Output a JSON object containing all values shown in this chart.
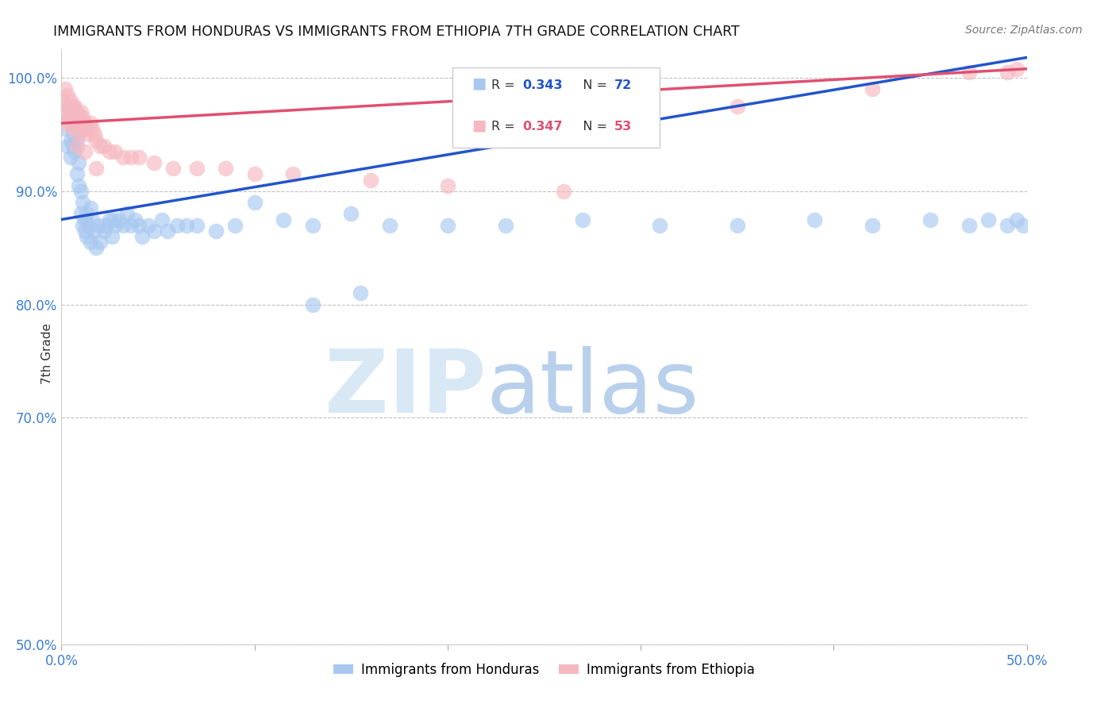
{
  "title": "IMMIGRANTS FROM HONDURAS VS IMMIGRANTS FROM ETHIOPIA 7TH GRADE CORRELATION CHART",
  "source": "Source: ZipAtlas.com",
  "ylabel": "7th Grade",
  "blue_color": "#A8C8F0",
  "pink_color": "#F5B8C0",
  "blue_line_color": "#2255CC",
  "pink_line_color": "#E05070",
  "blue_r": 0.343,
  "blue_n": 72,
  "pink_r": 0.347,
  "pink_n": 53,
  "background_color": "#FFFFFF",
  "grid_color": "#BBBBBB",
  "title_color": "#111111",
  "axis_label_color": "#3B7DD8",
  "watermark_zip_color": "#D8E8F5",
  "watermark_atlas_color": "#B8D0EC",
  "xlim": [
    0.0,
    0.5
  ],
  "ylim": [
    0.5,
    1.025
  ],
  "yticks": [
    0.5,
    0.7,
    0.8,
    0.9,
    1.0
  ],
  "ytick_labels": [
    "50.0%",
    "70.0%",
    "80.0%",
    "90.0%",
    "100.0%"
  ],
  "blue_line_x0": 0.0,
  "blue_line_y0": 0.875,
  "blue_line_x1": 0.5,
  "blue_line_y1": 1.018,
  "pink_line_x0": 0.0,
  "pink_line_y0": 0.96,
  "pink_line_x1": 0.5,
  "pink_line_y1": 1.008,
  "blue_scatter_x": [
    0.002,
    0.003,
    0.004,
    0.004,
    0.005,
    0.005,
    0.006,
    0.006,
    0.007,
    0.007,
    0.008,
    0.008,
    0.009,
    0.009,
    0.01,
    0.01,
    0.011,
    0.011,
    0.012,
    0.012,
    0.013,
    0.013,
    0.014,
    0.015,
    0.015,
    0.016,
    0.017,
    0.018,
    0.019,
    0.02,
    0.022,
    0.023,
    0.025,
    0.026,
    0.027,
    0.028,
    0.03,
    0.032,
    0.034,
    0.036,
    0.038,
    0.04,
    0.042,
    0.045,
    0.048,
    0.052,
    0.055,
    0.06,
    0.065,
    0.07,
    0.08,
    0.09,
    0.1,
    0.115,
    0.13,
    0.15,
    0.17,
    0.2,
    0.23,
    0.27,
    0.31,
    0.35,
    0.39,
    0.42,
    0.45,
    0.47,
    0.48,
    0.49,
    0.495,
    0.498,
    0.13,
    0.155
  ],
  "blue_scatter_y": [
    0.955,
    0.94,
    0.965,
    0.975,
    0.945,
    0.93,
    0.94,
    0.95,
    0.935,
    0.96,
    0.915,
    0.945,
    0.905,
    0.925,
    0.9,
    0.88,
    0.87,
    0.89,
    0.875,
    0.865,
    0.86,
    0.88,
    0.87,
    0.885,
    0.855,
    0.875,
    0.865,
    0.85,
    0.87,
    0.855,
    0.865,
    0.87,
    0.875,
    0.86,
    0.875,
    0.87,
    0.875,
    0.87,
    0.88,
    0.87,
    0.875,
    0.87,
    0.86,
    0.87,
    0.865,
    0.875,
    0.865,
    0.87,
    0.87,
    0.87,
    0.865,
    0.87,
    0.89,
    0.875,
    0.87,
    0.88,
    0.87,
    0.87,
    0.87,
    0.875,
    0.87,
    0.87,
    0.875,
    0.87,
    0.875,
    0.87,
    0.875,
    0.87,
    0.875,
    0.87,
    0.8,
    0.81
  ],
  "pink_scatter_x": [
    0.001,
    0.002,
    0.002,
    0.003,
    0.003,
    0.004,
    0.004,
    0.005,
    0.005,
    0.005,
    0.006,
    0.006,
    0.007,
    0.007,
    0.008,
    0.008,
    0.009,
    0.009,
    0.01,
    0.01,
    0.011,
    0.011,
    0.012,
    0.013,
    0.014,
    0.015,
    0.016,
    0.017,
    0.018,
    0.02,
    0.022,
    0.025,
    0.028,
    0.032,
    0.036,
    0.04,
    0.048,
    0.058,
    0.07,
    0.085,
    0.1,
    0.12,
    0.16,
    0.2,
    0.26,
    0.35,
    0.42,
    0.47,
    0.49,
    0.495,
    0.008,
    0.012,
    0.018
  ],
  "pink_scatter_y": [
    0.98,
    0.99,
    0.96,
    0.975,
    0.985,
    0.965,
    0.97,
    0.98,
    0.96,
    0.97,
    0.975,
    0.955,
    0.965,
    0.975,
    0.96,
    0.97,
    0.95,
    0.965,
    0.96,
    0.97,
    0.955,
    0.965,
    0.96,
    0.955,
    0.95,
    0.96,
    0.955,
    0.95,
    0.945,
    0.94,
    0.94,
    0.935,
    0.935,
    0.93,
    0.93,
    0.93,
    0.925,
    0.92,
    0.92,
    0.92,
    0.915,
    0.915,
    0.91,
    0.905,
    0.9,
    0.975,
    0.99,
    1.005,
    1.005,
    1.008,
    0.94,
    0.935,
    0.92
  ]
}
